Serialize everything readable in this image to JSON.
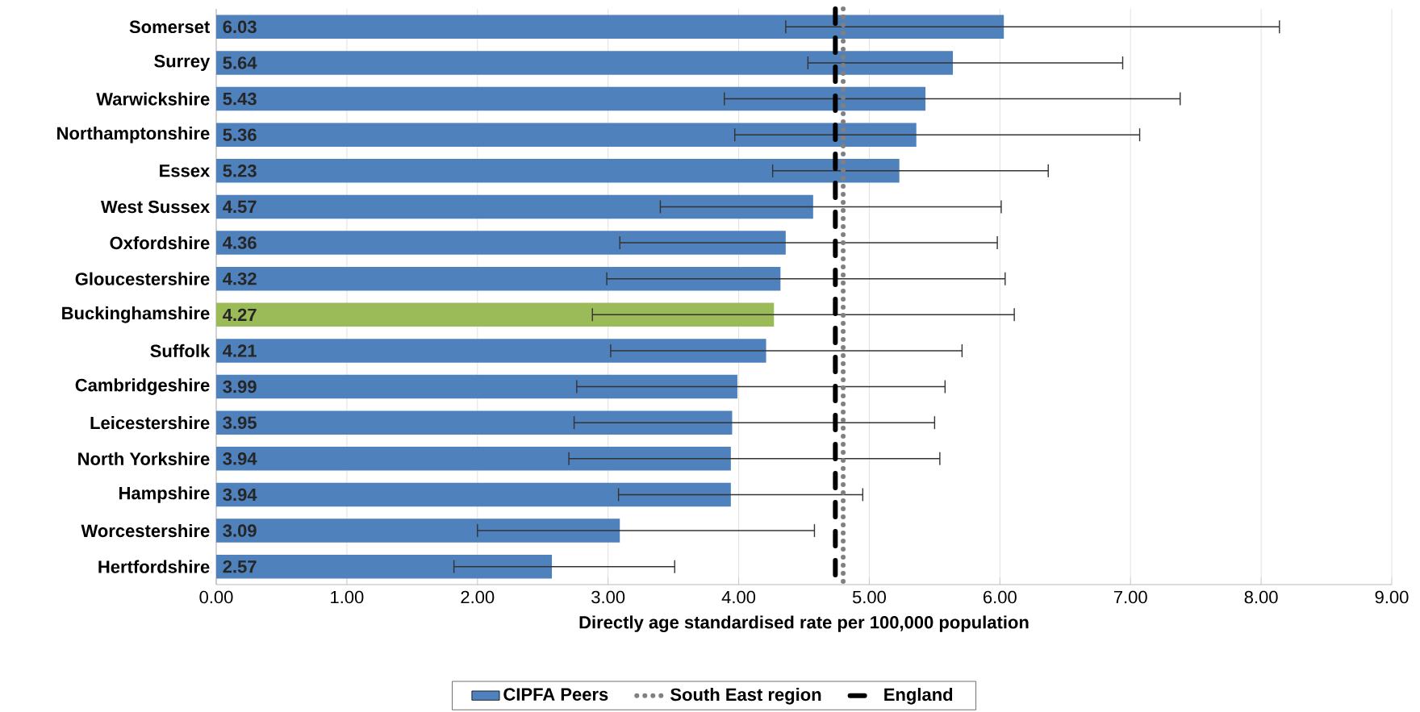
{
  "chart_data": {
    "type": "bar",
    "orientation": "horizontal",
    "xlabel": "Directly age standardised rate per 100,000 population",
    "categories": [
      "Somerset",
      "Surrey",
      "Warwickshire",
      "Northamptonshire",
      "Essex",
      "West Sussex",
      "Oxfordshire",
      "Gloucestershire",
      "Buckinghamshire",
      "Suffolk",
      "Cambridgeshire",
      "Leicestershire",
      "North Yorkshire",
      "Hampshire",
      "Worcestershire",
      "Hertfordshire"
    ],
    "series": [
      {
        "name": "CIPFA Peers",
        "color": "#4f81bd",
        "colors": [
          "#4f81bd",
          "#4f81bd",
          "#4f81bd",
          "#4f81bd",
          "#4f81bd",
          "#4f81bd",
          "#4f81bd",
          "#4f81bd",
          "#9bbb59",
          "#4f81bd",
          "#4f81bd",
          "#4f81bd",
          "#4f81bd",
          "#4f81bd",
          "#4f81bd",
          "#4f81bd"
        ],
        "values": [
          6.03,
          5.64,
          5.43,
          5.36,
          5.23,
          4.57,
          4.36,
          4.32,
          4.27,
          4.21,
          3.99,
          3.95,
          3.94,
          3.94,
          3.09,
          2.57
        ],
        "errors": [
          [
            4.36,
            8.14
          ],
          [
            4.53,
            6.94
          ],
          [
            3.89,
            7.38
          ],
          [
            3.97,
            7.07
          ],
          [
            4.26,
            6.37
          ],
          [
            3.4,
            6.01
          ],
          [
            3.09,
            5.98
          ],
          [
            2.99,
            6.04
          ],
          [
            2.88,
            6.11
          ],
          [
            3.02,
            5.71
          ],
          [
            2.76,
            5.58
          ],
          [
            2.74,
            5.5
          ],
          [
            2.7,
            5.54
          ],
          [
            3.08,
            4.95
          ],
          [
            2.0,
            4.58
          ],
          [
            1.82,
            3.51
          ]
        ]
      }
    ],
    "data_labels": true,
    "ref_lines": [
      {
        "axis": "x",
        "value": 4.8,
        "label": "South East region",
        "color": "#808080",
        "line_style": "dotted"
      },
      {
        "axis": "x",
        "value": 4.74,
        "label": "England",
        "color": "#000000",
        "line_style": "dashed"
      }
    ],
    "xlim": [
      0,
      9
    ],
    "xticks": [
      {
        "value": 0,
        "label": "0.00"
      },
      {
        "value": 1,
        "label": "1.00"
      },
      {
        "value": 2,
        "label": "2.00"
      },
      {
        "value": 3,
        "label": "3.00"
      },
      {
        "value": 4,
        "label": "4.00"
      },
      {
        "value": 5,
        "label": "5.00"
      },
      {
        "value": 6,
        "label": "6.00"
      },
      {
        "value": 7,
        "label": "7.00"
      },
      {
        "value": 8,
        "label": "8.00"
      },
      {
        "value": 9,
        "label": "9.00"
      }
    ],
    "grid": "x",
    "legend": "bottom"
  }
}
